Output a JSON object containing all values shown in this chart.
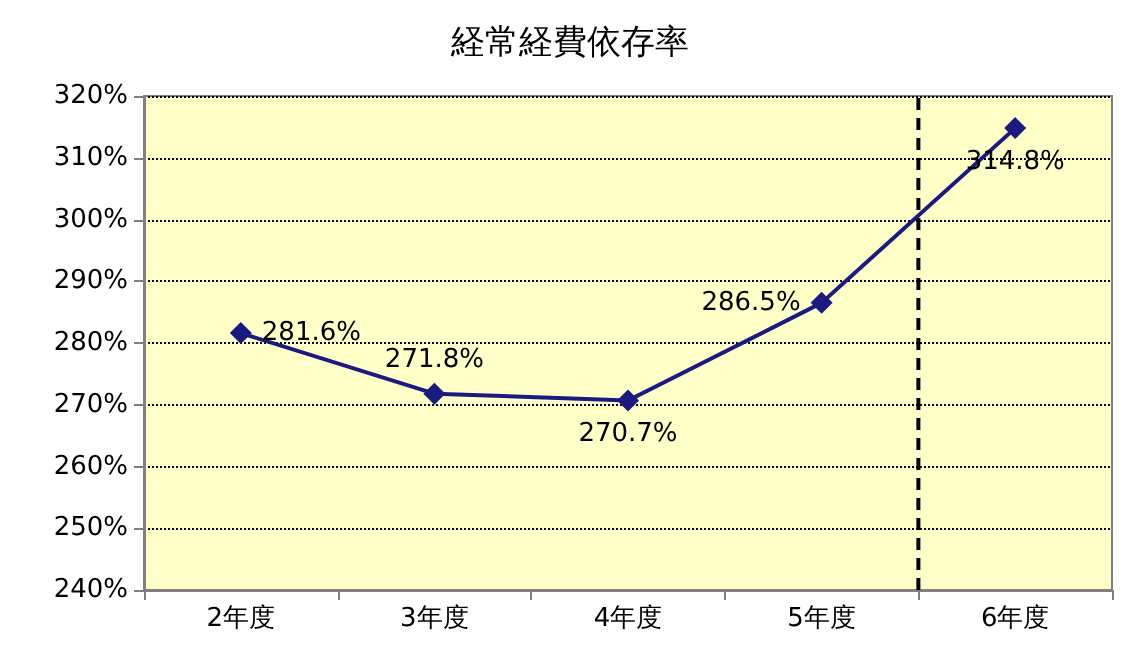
{
  "chart_data": {
    "type": "line",
    "title": "経常経費依存率",
    "categories": [
      "2年度",
      "3年度",
      "4年度",
      "5年度",
      "6年度"
    ],
    "series": [
      {
        "color": "#1a1a80",
        "values": [
          281.6,
          271.8,
          270.7,
          286.5,
          314.8
        ],
        "value_labels": [
          "281.6%",
          "271.8%",
          "270.7%",
          "286.5%",
          "314.8%"
        ]
      }
    ],
    "ylim": [
      240,
      320
    ],
    "yticks": [
      {
        "value": 240,
        "label": "240%"
      },
      {
        "value": 250,
        "label": "250%"
      },
      {
        "value": 260,
        "label": "260%"
      },
      {
        "value": 270,
        "label": "270%"
      },
      {
        "value": 280,
        "label": "280%"
      },
      {
        "value": 290,
        "label": "290%"
      },
      {
        "value": 300,
        "label": "300%"
      },
      {
        "value": 310,
        "label": "310%"
      },
      {
        "value": 320,
        "label": "320%"
      }
    ],
    "ref_lines": [
      {
        "axis": "x",
        "value": "6年度",
        "color": "#000000",
        "line_style": "dashed"
      }
    ],
    "grid": "y",
    "marker": "diamond",
    "line_style": "solid"
  }
}
